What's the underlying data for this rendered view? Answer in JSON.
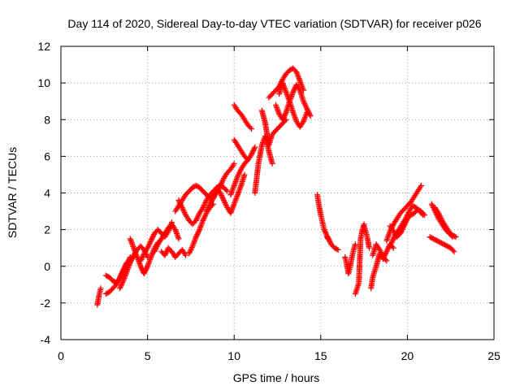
{
  "chart_data": {
    "type": "scatter",
    "title": "Day 114 of 2020, Sidereal Day-to-day VTEC variation (SDTVAR) for receiver p026",
    "xlabel": "GPS time / hours",
    "ylabel": "SDTVAR / TECUs",
    "xlim": [
      0,
      25
    ],
    "ylim": [
      -4,
      12
    ],
    "xticks": [
      0,
      5,
      10,
      15,
      20,
      25
    ],
    "yticks": [
      -4,
      -2,
      0,
      2,
      4,
      6,
      8,
      10,
      12
    ],
    "xtick_labels": [
      "0",
      "5",
      "10",
      "15",
      "20",
      "25"
    ],
    "ytick_labels": [
      "-4",
      "-2",
      "0",
      "2",
      "4",
      "6",
      "8",
      "10",
      "12"
    ],
    "grid": true,
    "marker": "+",
    "color": "#ff0000",
    "segments": [
      {
        "x": [
          2.1,
          2.2,
          2.3
        ],
        "y": [
          -2.1,
          -1.6,
          -1.2
        ]
      },
      {
        "x": [
          2.6,
          2.8,
          3.0,
          3.2,
          3.4,
          3.6,
          3.8
        ],
        "y": [
          -1.5,
          -1.4,
          -1.2,
          -1.0,
          -0.6,
          -0.2,
          0.2
        ]
      },
      {
        "x": [
          2.6,
          2.8,
          3.0,
          3.2,
          3.4,
          3.6,
          3.8,
          4.0
        ],
        "y": [
          -0.5,
          -0.6,
          -0.8,
          -0.9,
          -0.7,
          -0.3,
          0.1,
          0.5
        ]
      },
      {
        "x": [
          3.4,
          3.6,
          3.8,
          4.0,
          4.2,
          4.4,
          4.6,
          4.8,
          5.0
        ],
        "y": [
          -1.2,
          -0.8,
          -0.3,
          0.2,
          0.6,
          0.9,
          1.1,
          0.9,
          0.5
        ]
      },
      {
        "x": [
          4.0,
          4.2,
          4.4,
          4.6,
          4.8,
          5.0,
          5.2,
          5.4,
          5.6
        ],
        "y": [
          1.5,
          1.0,
          0.5,
          0.0,
          -0.4,
          0.0,
          0.5,
          1.0,
          1.3
        ]
      },
      {
        "x": [
          4.6,
          4.8,
          5.0,
          5.2,
          5.4,
          5.6,
          5.8,
          6.0,
          6.2,
          6.4
        ],
        "y": [
          0.3,
          0.7,
          1.0,
          1.4,
          1.8,
          2.0,
          1.8,
          1.6,
          1.9,
          2.4
        ]
      },
      {
        "x": [
          5.4,
          5.6,
          5.8,
          6.0,
          6.2,
          6.4,
          6.6,
          6.8
        ],
        "y": [
          0.8,
          1.2,
          1.5,
          1.8,
          2.1,
          2.3,
          2.0,
          1.5
        ]
      },
      {
        "x": [
          5.8,
          6.0,
          6.2,
          6.4,
          6.6,
          6.8,
          7.0,
          7.2
        ],
        "y": [
          0.8,
          0.6,
          1.0,
          0.8,
          0.5,
          0.7,
          0.9,
          0.6
        ]
      },
      {
        "x": [
          6.6,
          6.8,
          7.0,
          7.2,
          7.4,
          7.6,
          7.8,
          8.0,
          8.2,
          8.4,
          8.6,
          8.8,
          9.0
        ],
        "y": [
          3.0,
          3.3,
          3.6,
          3.9,
          4.1,
          4.3,
          4.4,
          4.3,
          4.1,
          3.9,
          3.7,
          3.9,
          4.2
        ]
      },
      {
        "x": [
          6.8,
          7.0,
          7.2,
          7.4,
          7.6,
          7.8,
          8.0,
          8.2,
          8.4,
          8.6,
          8.8,
          9.0,
          9.2,
          9.4,
          9.6
        ],
        "y": [
          3.6,
          3.2,
          2.8,
          2.5,
          2.3,
          2.5,
          2.9,
          3.2,
          3.6,
          3.9,
          4.1,
          4.3,
          4.4,
          4.3,
          4.1
        ]
      },
      {
        "x": [
          7.4,
          7.6,
          7.8,
          8.0,
          8.2,
          8.4,
          8.6,
          8.8
        ],
        "y": [
          0.7,
          1.1,
          1.6,
          2.0,
          2.5,
          2.9,
          3.2,
          3.4
        ]
      },
      {
        "x": [
          8.4,
          8.6,
          8.8,
          9.0,
          9.2,
          9.4,
          9.6,
          9.8,
          10.0
        ],
        "y": [
          3.0,
          3.4,
          3.7,
          4.1,
          4.4,
          4.8,
          5.1,
          5.3,
          5.6
        ]
      },
      {
        "x": [
          9.0,
          9.2,
          9.4,
          9.6,
          9.8,
          10.0,
          10.2,
          10.4,
          10.6
        ],
        "y": [
          4.3,
          4.0,
          3.6,
          3.2,
          2.9,
          3.4,
          3.9,
          4.4,
          5.0
        ]
      },
      {
        "x": [
          9.8,
          10.0,
          10.2,
          10.4,
          10.6,
          10.8
        ],
        "y": [
          3.9,
          4.4,
          4.9,
          5.3,
          5.6,
          5.8
        ]
      },
      {
        "x": [
          10.0,
          10.2,
          10.4,
          10.6,
          10.8,
          11.0,
          11.2
        ],
        "y": [
          6.9,
          6.6,
          6.3,
          6.0,
          5.8,
          6.1,
          6.5
        ]
      },
      {
        "x": [
          10.0,
          10.2,
          10.4,
          10.6,
          10.8,
          11.0
        ],
        "y": [
          8.8,
          8.5,
          8.3,
          8.0,
          7.7,
          7.5
        ]
      },
      {
        "x": [
          11.2,
          11.4,
          11.6,
          11.8,
          12.0,
          12.2
        ],
        "y": [
          4.0,
          5.6,
          6.6,
          7.1,
          6.3,
          5.6
        ]
      },
      {
        "x": [
          11.6,
          11.8,
          12.0,
          12.2,
          12.4,
          12.6,
          12.8,
          13.0
        ],
        "y": [
          8.5,
          7.8,
          6.6,
          7.2,
          7.4,
          7.6,
          7.8,
          8.0
        ]
      },
      {
        "x": [
          12.0,
          12.2,
          12.4,
          12.6,
          12.8,
          13.0,
          13.2,
          13.4,
          13.6,
          13.8,
          14.0
        ],
        "y": [
          9.2,
          9.4,
          9.6,
          9.8,
          10.2,
          10.5,
          10.7,
          10.8,
          10.6,
          10.1,
          9.6
        ]
      },
      {
        "x": [
          12.4,
          12.6,
          12.8,
          13.0,
          13.2,
          13.4,
          13.6,
          13.8,
          14.0,
          14.2,
          14.4
        ],
        "y": [
          8.8,
          8.3,
          8.0,
          8.4,
          9.0,
          9.5,
          9.9,
          9.6,
          9.0,
          8.6,
          8.2
        ]
      },
      {
        "x": [
          12.6,
          12.8,
          13.0,
          13.2,
          13.4,
          13.6,
          13.8,
          14.0,
          14.2
        ],
        "y": [
          9.4,
          10.0,
          9.5,
          9.0,
          8.4,
          7.9,
          7.6,
          7.9,
          8.4
        ]
      },
      {
        "x": [
          14.8,
          14.9,
          15.0,
          15.1,
          15.2,
          15.3,
          15.4
        ],
        "y": [
          3.9,
          3.3,
          2.8,
          2.4,
          2.0,
          1.8,
          1.5
        ]
      },
      {
        "x": [
          15.4,
          15.6,
          15.8,
          16.0
        ],
        "y": [
          1.6,
          1.2,
          1.0,
          0.9
        ]
      },
      {
        "x": [
          16.4,
          16.5,
          16.6,
          16.7,
          16.8,
          16.9,
          17.0
        ],
        "y": [
          0.5,
          0.1,
          -0.4,
          0.0,
          0.5,
          0.9,
          1.2
        ]
      },
      {
        "x": [
          17.0,
          17.1,
          17.2,
          17.3,
          17.4,
          17.5
        ],
        "y": [
          -1.5,
          -1.2,
          -0.9,
          1.5,
          2.0,
          2.3
        ]
      },
      {
        "x": [
          17.5,
          17.6,
          17.7,
          17.8
        ],
        "y": [
          2.2,
          1.9,
          1.5,
          1.0
        ]
      },
      {
        "x": [
          17.9,
          18.0,
          18.2,
          18.4,
          18.6,
          18.8,
          19.0,
          19.2
        ],
        "y": [
          -1.2,
          -0.6,
          0.0,
          0.7,
          0.4,
          0.8,
          1.2,
          1.0
        ]
      },
      {
        "x": [
          18.0,
          18.2,
          18.4,
          18.6,
          18.8
        ],
        "y": [
          0.6,
          1.2,
          0.9,
          0.5,
          0.3
        ]
      },
      {
        "x": [
          18.8,
          19.0,
          19.2,
          19.4,
          19.6,
          19.8,
          20.0,
          20.2,
          20.4,
          20.6,
          20.8
        ],
        "y": [
          1.4,
          1.9,
          2.3,
          2.6,
          2.9,
          3.1,
          3.3,
          3.5,
          3.8,
          4.1,
          4.4
        ]
      },
      {
        "x": [
          18.9,
          19.1,
          19.3,
          19.5,
          19.7,
          19.9,
          20.1,
          20.3,
          20.5,
          20.7,
          20.9
        ],
        "y": [
          1.0,
          1.3,
          1.7,
          2.0,
          2.3,
          2.6,
          3.0,
          3.3,
          3.2,
          3.0,
          2.8
        ]
      },
      {
        "x": [
          19.0,
          19.2,
          19.4,
          19.6,
          19.8,
          20.0,
          20.2,
          20.4,
          20.6,
          20.8,
          21.0
        ],
        "y": [
          2.2,
          1.9,
          1.6,
          1.8,
          2.2,
          2.6,
          2.8,
          2.9,
          3.1,
          3.0,
          2.8
        ]
      },
      {
        "x": [
          21.4,
          21.6,
          21.8,
          22.0,
          22.2,
          22.4,
          22.6,
          22.8
        ],
        "y": [
          3.4,
          3.0,
          2.6,
          2.3,
          2.0,
          1.8,
          1.7,
          1.6
        ]
      },
      {
        "x": [
          21.3,
          21.5,
          21.7,
          21.9,
          22.1,
          22.3,
          22.5,
          22.7
        ],
        "y": [
          1.6,
          1.5,
          1.4,
          1.3,
          1.2,
          1.1,
          1.0,
          0.8
        ]
      },
      {
        "x": [
          21.6,
          21.8,
          22.0,
          22.2,
          22.4,
          22.6
        ],
        "y": [
          3.2,
          2.9,
          2.5,
          2.2,
          1.9,
          1.6
        ]
      }
    ]
  }
}
